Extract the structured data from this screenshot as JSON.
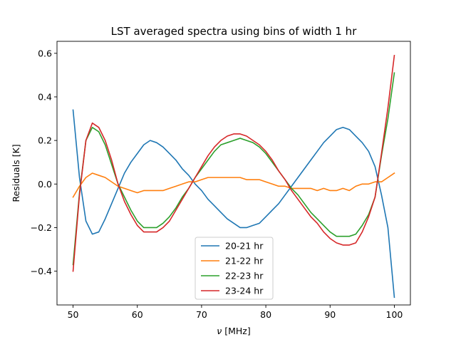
{
  "chart_data": {
    "type": "line",
    "title": "LST averaged spectra using bins of width 1 hr",
    "xlabel_symbol": "ν",
    "xlabel_unit": " [MHz]",
    "ylabel": "Residuals [K]",
    "xlim": [
      47.5,
      102.5
    ],
    "ylim": [
      -0.555,
      0.655
    ],
    "x_ticks": [
      50,
      60,
      70,
      80,
      90,
      100
    ],
    "x_tick_labels": [
      "50",
      "60",
      "70",
      "80",
      "90",
      "100"
    ],
    "y_ticks": [
      -0.4,
      -0.2,
      0.0,
      0.2,
      0.4,
      0.6
    ],
    "y_tick_labels": [
      "−0.4",
      "−0.2",
      "0.0",
      "0.2",
      "0.4",
      "0.6"
    ],
    "grid": false,
    "legend_position": "lower-center",
    "x": [
      50,
      51,
      52,
      53,
      54,
      55,
      56,
      57,
      58,
      59,
      60,
      61,
      62,
      63,
      64,
      65,
      66,
      67,
      68,
      69,
      70,
      71,
      72,
      73,
      74,
      75,
      76,
      77,
      78,
      79,
      80,
      81,
      82,
      83,
      84,
      85,
      86,
      87,
      88,
      89,
      90,
      91,
      92,
      93,
      94,
      95,
      96,
      97,
      98,
      99,
      100
    ],
    "series": [
      {
        "name": "20-21 hr",
        "color": "#1f77b4",
        "values": [
          0.34,
          0.03,
          -0.17,
          -0.23,
          -0.22,
          -0.16,
          -0.09,
          -0.02,
          0.05,
          0.1,
          0.14,
          0.18,
          0.2,
          0.19,
          0.17,
          0.14,
          0.11,
          0.07,
          0.04,
          0.0,
          -0.03,
          -0.07,
          -0.1,
          -0.13,
          -0.16,
          -0.18,
          -0.2,
          -0.2,
          -0.19,
          -0.18,
          -0.15,
          -0.12,
          -0.09,
          -0.05,
          -0.01,
          0.03,
          0.07,
          0.11,
          0.15,
          0.19,
          0.22,
          0.25,
          0.26,
          0.25,
          0.22,
          0.19,
          0.15,
          0.08,
          -0.05,
          -0.2,
          -0.52
        ]
      },
      {
        "name": "21-22 hr",
        "color": "#ff7f0e",
        "values": [
          -0.06,
          -0.01,
          0.03,
          0.05,
          0.04,
          0.03,
          0.01,
          -0.01,
          -0.02,
          -0.03,
          -0.04,
          -0.03,
          -0.03,
          -0.03,
          -0.03,
          -0.02,
          -0.01,
          0.0,
          0.01,
          0.01,
          0.02,
          0.03,
          0.03,
          0.03,
          0.03,
          0.03,
          0.03,
          0.02,
          0.02,
          0.02,
          0.01,
          0.0,
          -0.01,
          -0.01,
          -0.02,
          -0.02,
          -0.02,
          -0.02,
          -0.03,
          -0.02,
          -0.03,
          -0.03,
          -0.02,
          -0.03,
          -0.01,
          0.0,
          0.0,
          0.01,
          0.01,
          0.03,
          0.05
        ]
      },
      {
        "name": "22-23 hr",
        "color": "#2ca02c",
        "values": [
          -0.37,
          -0.04,
          0.2,
          0.26,
          0.24,
          0.18,
          0.09,
          0.0,
          -0.06,
          -0.12,
          -0.17,
          -0.2,
          -0.2,
          -0.2,
          -0.18,
          -0.15,
          -0.11,
          -0.06,
          -0.02,
          0.03,
          0.07,
          0.11,
          0.15,
          0.18,
          0.19,
          0.2,
          0.21,
          0.2,
          0.19,
          0.17,
          0.14,
          0.1,
          0.06,
          0.02,
          -0.02,
          -0.05,
          -0.09,
          -0.13,
          -0.16,
          -0.19,
          -0.22,
          -0.24,
          -0.24,
          -0.24,
          -0.23,
          -0.19,
          -0.14,
          -0.06,
          0.13,
          0.3,
          0.51
        ]
      },
      {
        "name": "23-24 hr",
        "color": "#d62728",
        "values": [
          -0.4,
          -0.05,
          0.2,
          0.28,
          0.26,
          0.2,
          0.11,
          0.0,
          -0.08,
          -0.14,
          -0.19,
          -0.22,
          -0.22,
          -0.22,
          -0.2,
          -0.17,
          -0.12,
          -0.07,
          -0.02,
          0.03,
          0.08,
          0.13,
          0.17,
          0.2,
          0.22,
          0.23,
          0.23,
          0.22,
          0.2,
          0.18,
          0.15,
          0.11,
          0.06,
          0.02,
          -0.03,
          -0.07,
          -0.11,
          -0.15,
          -0.18,
          -0.22,
          -0.25,
          -0.27,
          -0.28,
          -0.28,
          -0.27,
          -0.22,
          -0.15,
          -0.06,
          0.14,
          0.35,
          0.59
        ]
      }
    ]
  }
}
